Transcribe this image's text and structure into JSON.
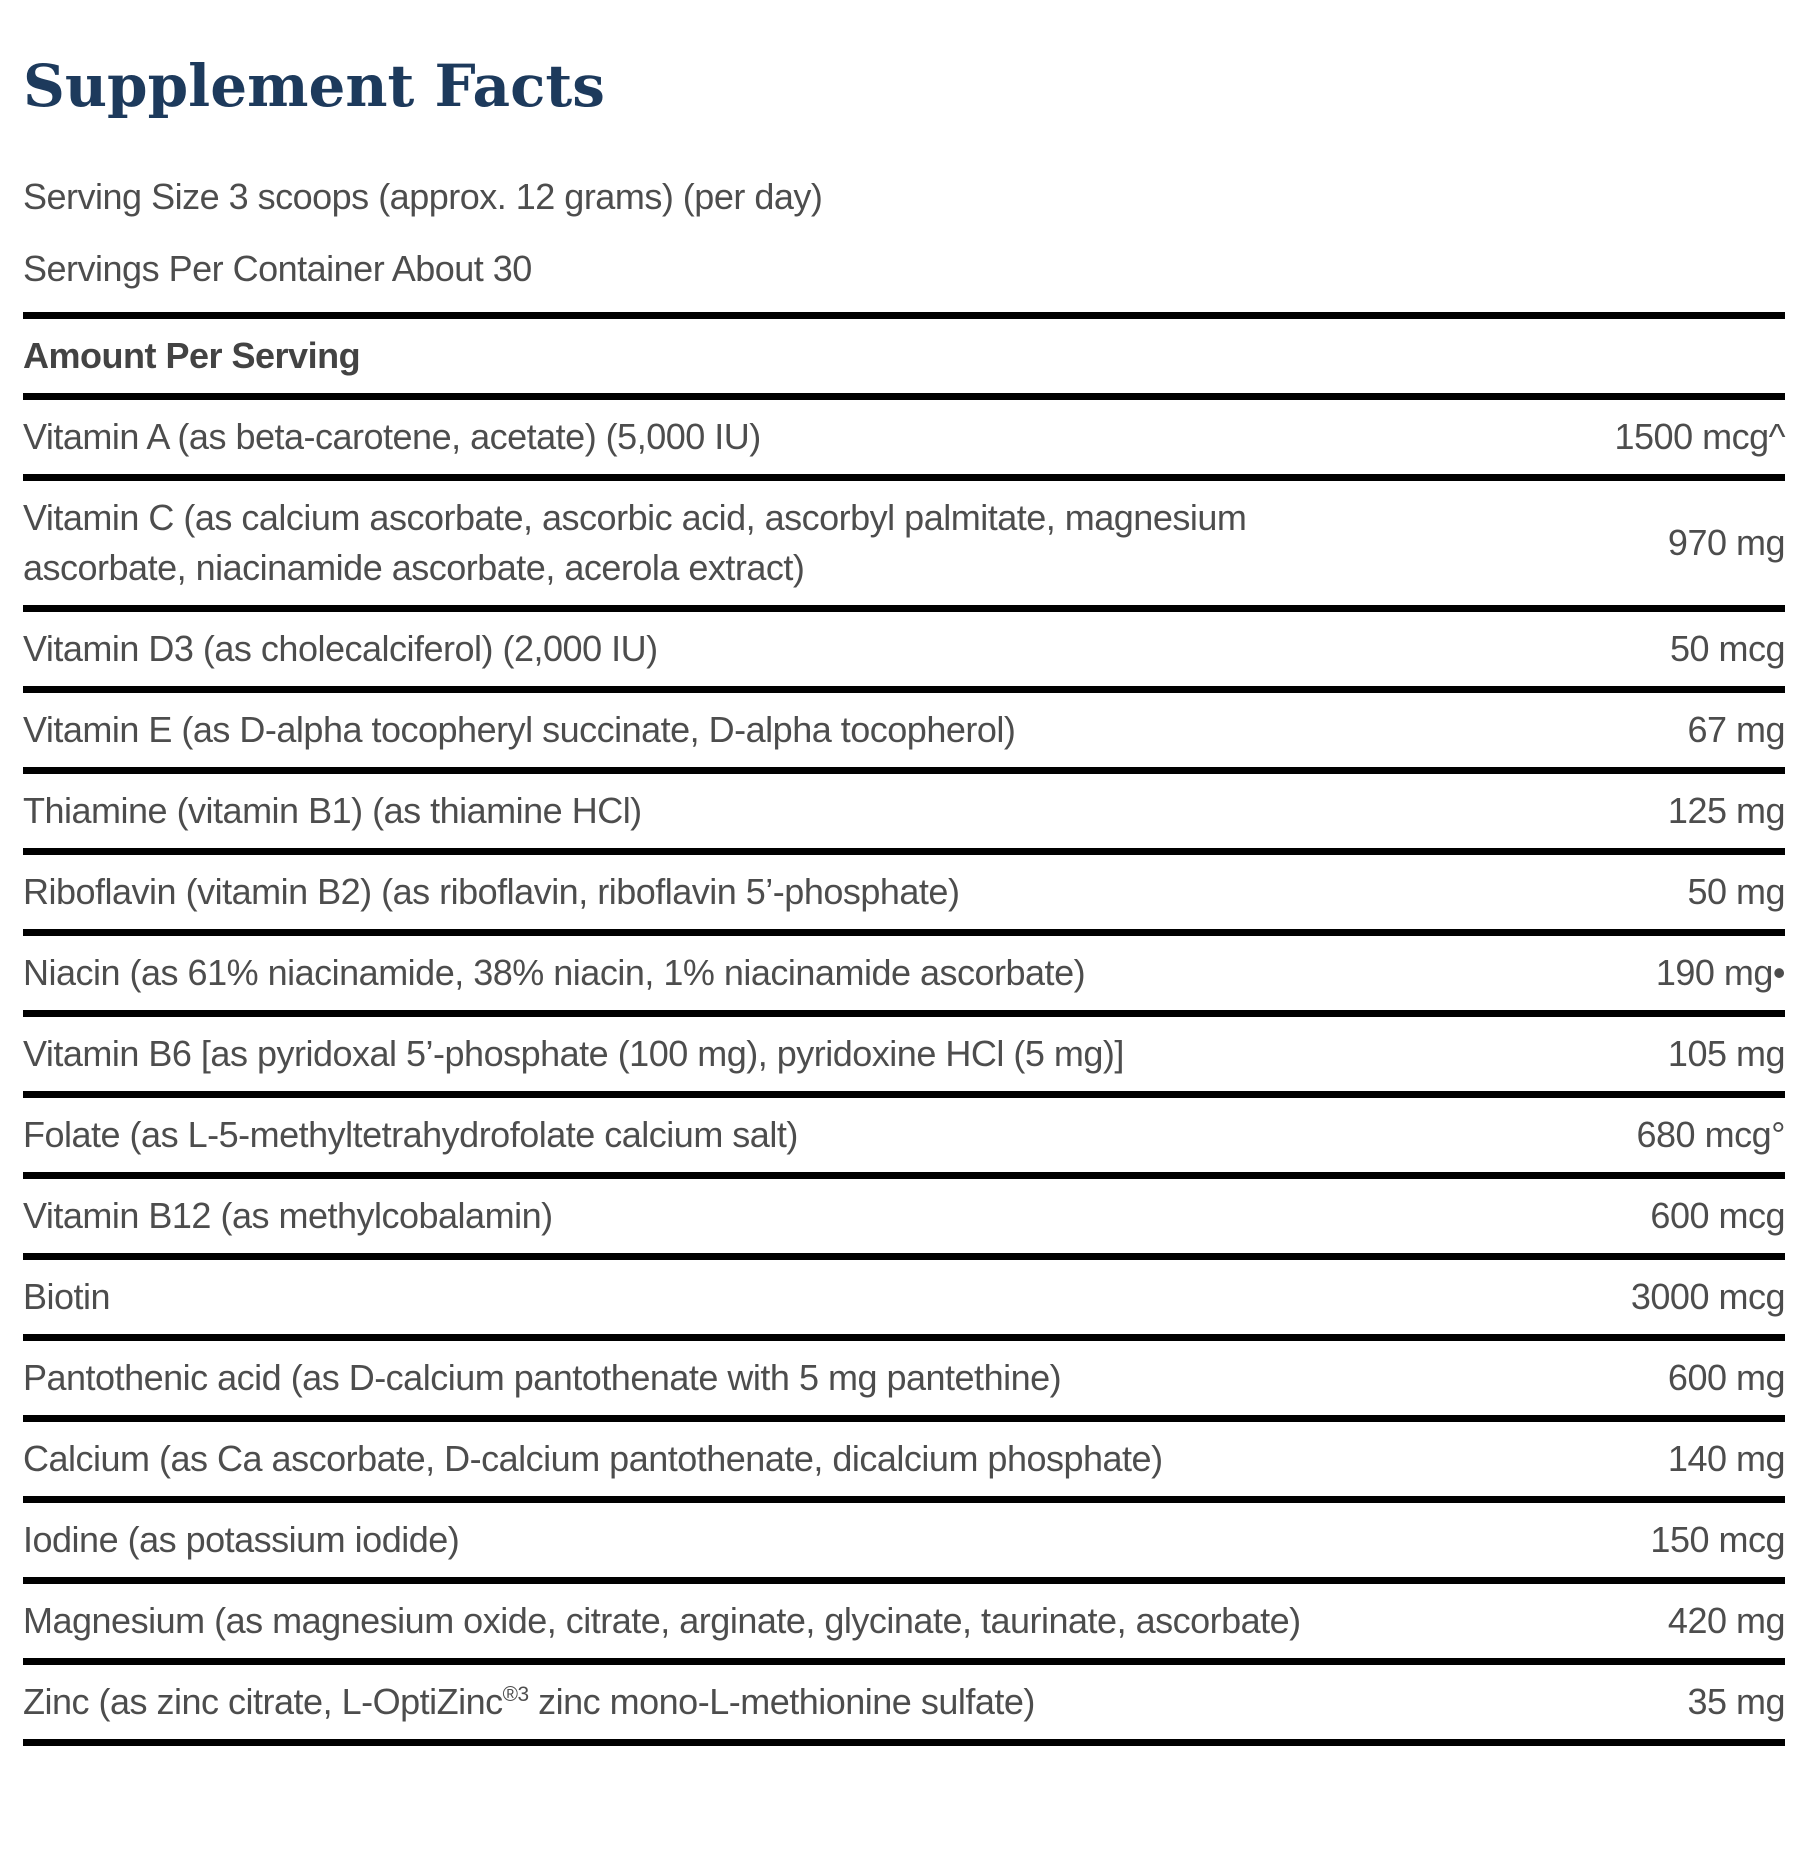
{
  "page": {
    "title": "Supplement Facts",
    "serving_size": "Serving Size 3 scoops (approx. 12 grams) (per day)",
    "servings_per_container": "Servings Per Container About 30"
  },
  "table": {
    "amount_header": "Amount Per Serving",
    "rows": [
      {
        "label": "Vitamin A (as beta-carotene, acetate) (5,000 IU)",
        "amount": "1500 mcg^"
      },
      {
        "label": "Vitamin C (as calcium ascorbate, ascorbic acid, ascorbyl palmitate, magnesium ascorbate, niacinamide ascorbate, acerola extract)",
        "amount": "970 mg"
      },
      {
        "label": "Vitamin D3 (as cholecalciferol) (2,000 IU)",
        "amount": "50 mcg"
      },
      {
        "label": "Vitamin E (as D-alpha tocopheryl succinate, D-alpha tocopherol)",
        "amount": "67 mg"
      },
      {
        "label": "Thiamine (vitamin B1) (as thiamine HCl)",
        "amount": "125 mg"
      },
      {
        "label": "Riboflavin (vitamin B2) (as riboflavin, riboflavin 5’-phosphate)",
        "amount": "50 mg"
      },
      {
        "label": "Niacin (as 61% niacinamide, 38% niacin, 1% niacinamide ascorbate)",
        "amount": "190 mg•"
      },
      {
        "label": "Vitamin B6 [as pyridoxal 5’-phosphate (100 mg), pyridoxine HCl (5 mg)]",
        "amount": "105 mg"
      },
      {
        "label": "Folate (as L-5-methyltetrahydrofolate calcium salt)",
        "amount": "680 mcg°"
      },
      {
        "label": "Vitamin B12 (as methylcobalamin)",
        "amount": "600 mcg"
      },
      {
        "label": "Biotin",
        "amount": "3000 mcg"
      },
      {
        "label": "Pantothenic acid (as D-calcium pantothenate with 5 mg pantethine)",
        "amount": "600 mg"
      },
      {
        "label": "Calcium (as Ca ascorbate, D-calcium pantothenate, dicalcium phosphate)",
        "amount": "140 mg"
      },
      {
        "label": "Iodine (as potassium iodide)",
        "amount": "150 mcg"
      },
      {
        "label": "Magnesium (as magnesium oxide, citrate, arginate, glycinate, taurinate, ascorbate)",
        "amount": "420 mg"
      },
      {
        "label": [
          {
            "text": "Zinc (as zinc citrate, L-OptiZinc"
          },
          {
            "text": "®3",
            "sup": true
          },
          {
            "text": " zinc mono-L-methionine sulfate)"
          }
        ],
        "amount": "35 mg"
      }
    ]
  },
  "colors": {
    "title": "#1d3a5c",
    "text": "#4d4d4d",
    "border": "#000000",
    "background": "#ffffff"
  }
}
